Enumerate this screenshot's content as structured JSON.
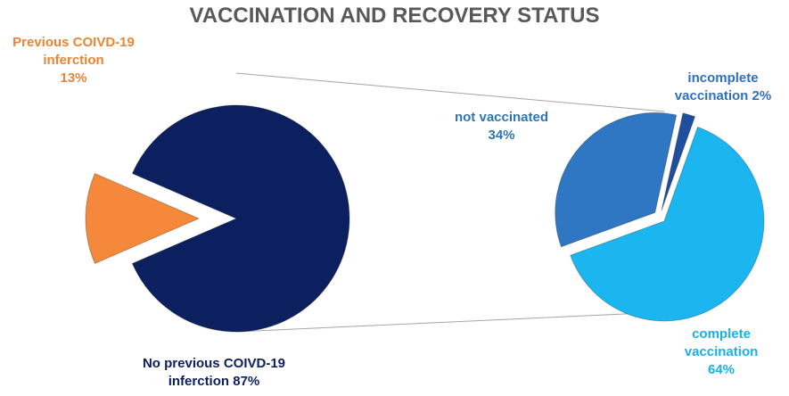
{
  "chart_data": [
    {
      "type": "pie",
      "title": "VACCINATION AND RECOVERY STATUS",
      "categories": [
        "Previous COIVD-19 inferction",
        "No previous COIVD-19 inferction"
      ],
      "values": [
        13,
        87
      ],
      "value_labels": [
        "13%",
        "87%"
      ],
      "colors": [
        "#f5883a",
        "#0c1f5e"
      ],
      "label_colors": [
        "#ec8433",
        "#0c1f5e"
      ]
    },
    {
      "type": "pie",
      "categories": [
        "not vaccinated",
        "incomplete vaccination",
        "complete vaccination"
      ],
      "values": [
        34,
        2,
        64
      ],
      "value_labels": [
        "34%",
        "2%",
        "64%"
      ],
      "colors": [
        "#2f77c3",
        "#1f4f9c",
        "#1bb5f0"
      ],
      "label_colors": [
        "#2e75b6",
        "#2f6fc0",
        "#1ab0ea"
      ]
    }
  ]
}
